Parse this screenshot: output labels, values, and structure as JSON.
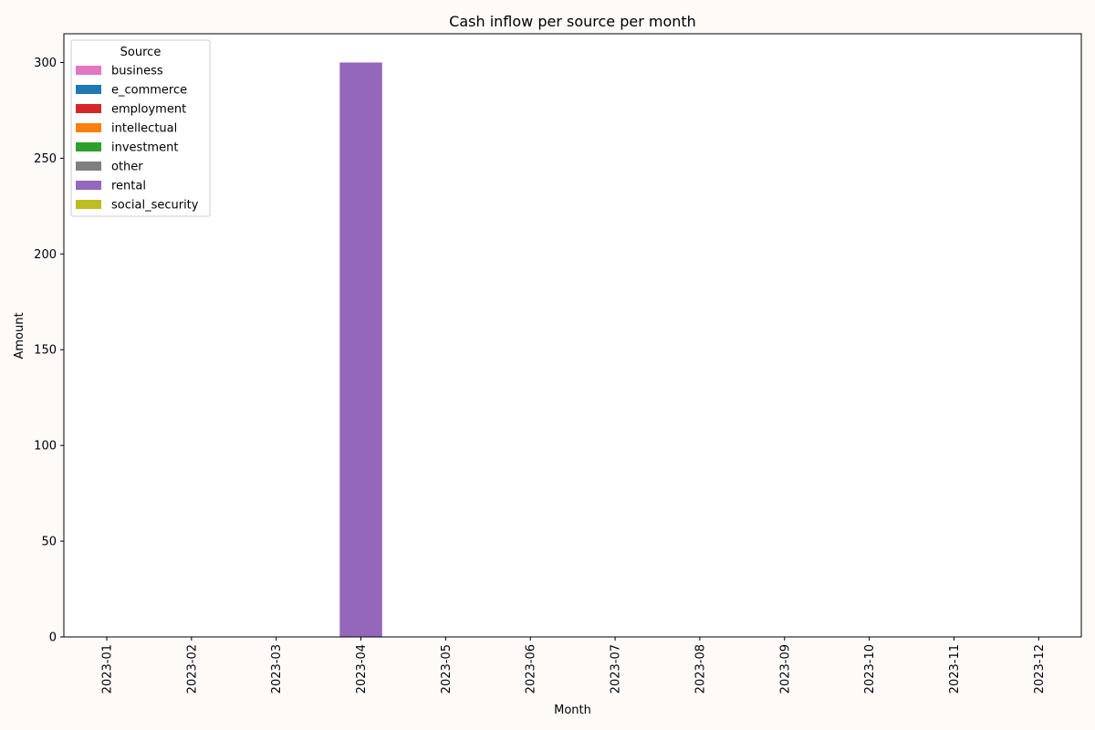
{
  "chart_data": {
    "type": "bar",
    "stacked": true,
    "title": "Cash inflow per source per month",
    "xlabel": "Month",
    "ylabel": "Amount",
    "categories": [
      "2023-01",
      "2023-02",
      "2023-03",
      "2023-04",
      "2023-05",
      "2023-06",
      "2023-07",
      "2023-08",
      "2023-09",
      "2023-10",
      "2023-11",
      "2023-12"
    ],
    "ylim": [
      0,
      315
    ],
    "yticks": [
      0,
      50,
      100,
      150,
      200,
      250,
      300
    ],
    "grid": false,
    "legend": {
      "title": "Source",
      "position": "top-left"
    },
    "series": [
      {
        "name": "business",
        "color": "#e377c2",
        "values": [
          0,
          0,
          0,
          0,
          0,
          0,
          0,
          0,
          0,
          0,
          0,
          0
        ]
      },
      {
        "name": "e_commerce",
        "color": "#1f77b4",
        "values": [
          0,
          0,
          0,
          0,
          0,
          0,
          0,
          0,
          0,
          0,
          0,
          0
        ]
      },
      {
        "name": "employment",
        "color": "#d62728",
        "values": [
          0,
          0,
          0,
          0,
          0,
          0,
          0,
          0,
          0,
          0,
          0,
          0
        ]
      },
      {
        "name": "intellectual",
        "color": "#ff7f0e",
        "values": [
          0,
          0,
          0,
          0,
          0,
          0,
          0,
          0,
          0,
          0,
          0,
          0
        ]
      },
      {
        "name": "investment",
        "color": "#2ca02c",
        "values": [
          0,
          0,
          0,
          0,
          0,
          0,
          0,
          0,
          0,
          0,
          0,
          0
        ]
      },
      {
        "name": "other",
        "color": "#7f7f7f",
        "values": [
          0,
          0,
          0,
          0,
          0,
          0,
          0,
          0,
          0,
          0,
          0,
          0
        ]
      },
      {
        "name": "rental",
        "color": "#9467bd",
        "values": [
          0,
          0,
          0,
          300,
          0,
          0,
          0,
          0,
          0,
          0,
          0,
          0
        ]
      },
      {
        "name": "social_security",
        "color": "#bcbd22",
        "values": [
          0,
          0,
          0,
          0,
          0,
          0,
          0,
          0,
          0,
          0,
          0,
          0
        ]
      }
    ]
  }
}
